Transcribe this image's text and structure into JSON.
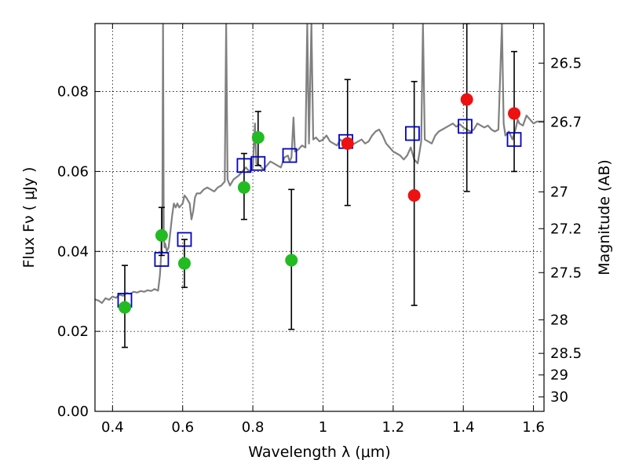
{
  "chart_data": {
    "type": "scatter",
    "xlabel": "Wavelength  λ (μm)",
    "ylabel": "Flux  Fν  ( μJy )",
    "y2label": "Magnitude (AB)",
    "xlim": [
      0.35,
      1.63
    ],
    "ylim": [
      0.0,
      0.097
    ],
    "grid": true,
    "x_ticks": [
      "0.4",
      "0.6",
      "0.8",
      "1",
      "1.2",
      "1.4",
      "1.6"
    ],
    "y_ticks": [
      "0.00",
      "0.02",
      "0.04",
      "0.06",
      "0.08"
    ],
    "y2_ticks": [
      {
        "label": "26.5",
        "flux": 0.0871
      },
      {
        "label": "26.7",
        "flux": 0.0724
      },
      {
        "label": "27",
        "flux": 0.0549
      },
      {
        "label": "27.2",
        "flux": 0.0457
      },
      {
        "label": "27.5",
        "flux": 0.0347
      },
      {
        "label": "28",
        "flux": 0.0229
      },
      {
        "label": "28.5",
        "flux": 0.0145
      },
      {
        "label": "29",
        "flux": 0.0091
      },
      {
        "label": "30",
        "flux": 0.0036
      }
    ],
    "series": [
      {
        "name": "model spectrum",
        "kind": "line",
        "color": "#808080",
        "points": [
          [
            0.35,
            0.028
          ],
          [
            0.36,
            0.0277
          ],
          [
            0.37,
            0.0271
          ],
          [
            0.38,
            0.0283
          ],
          [
            0.39,
            0.0279
          ],
          [
            0.4,
            0.0287
          ],
          [
            0.41,
            0.0284
          ],
          [
            0.42,
            0.0292
          ],
          [
            0.43,
            0.0289
          ],
          [
            0.44,
            0.0296
          ],
          [
            0.45,
            0.0294
          ],
          [
            0.46,
            0.0299
          ],
          [
            0.47,
            0.0297
          ],
          [
            0.48,
            0.0301
          ],
          [
            0.49,
            0.0299
          ],
          [
            0.5,
            0.0303
          ],
          [
            0.51,
            0.0301
          ],
          [
            0.52,
            0.0306
          ],
          [
            0.53,
            0.0302
          ],
          [
            0.535,
            0.034
          ],
          [
            0.538,
            0.038
          ],
          [
            0.54,
            0.044
          ],
          [
            0.542,
            0.048
          ],
          [
            0.544,
            0.097
          ],
          [
            0.546,
            0.045
          ],
          [
            0.548,
            0.041
          ],
          [
            0.55,
            0.042
          ],
          [
            0.555,
            0.04
          ],
          [
            0.56,
            0.041
          ],
          [
            0.565,
            0.045
          ],
          [
            0.57,
            0.049
          ],
          [
            0.575,
            0.052
          ],
          [
            0.58,
            0.051
          ],
          [
            0.585,
            0.052
          ],
          [
            0.59,
            0.051
          ],
          [
            0.6,
            0.052
          ],
          [
            0.605,
            0.054
          ],
          [
            0.61,
            0.0535
          ],
          [
            0.62,
            0.052
          ],
          [
            0.625,
            0.048
          ],
          [
            0.63,
            0.05
          ],
          [
            0.635,
            0.0535
          ],
          [
            0.64,
            0.0545
          ],
          [
            0.65,
            0.0545
          ],
          [
            0.66,
            0.0555
          ],
          [
            0.67,
            0.056
          ],
          [
            0.68,
            0.0555
          ],
          [
            0.69,
            0.055
          ],
          [
            0.7,
            0.056
          ],
          [
            0.71,
            0.0565
          ],
          [
            0.72,
            0.0575
          ],
          [
            0.724,
            0.097
          ],
          [
            0.728,
            0.058
          ],
          [
            0.735,
            0.0565
          ],
          [
            0.745,
            0.058
          ],
          [
            0.76,
            0.059
          ],
          [
            0.77,
            0.06
          ],
          [
            0.78,
            0.061
          ],
          [
            0.79,
            0.06
          ],
          [
            0.8,
            0.061
          ],
          [
            0.806,
            0.072
          ],
          [
            0.81,
            0.062
          ],
          [
            0.82,
            0.0615
          ],
          [
            0.83,
            0.0605
          ],
          [
            0.84,
            0.0615
          ],
          [
            0.85,
            0.0625
          ],
          [
            0.86,
            0.062
          ],
          [
            0.87,
            0.0615
          ],
          [
            0.88,
            0.061
          ],
          [
            0.89,
            0.0635
          ],
          [
            0.9,
            0.064
          ],
          [
            0.905,
            0.0625
          ],
          [
            0.91,
            0.0635
          ],
          [
            0.916,
            0.0735
          ],
          [
            0.92,
            0.065
          ],
          [
            0.93,
            0.0655
          ],
          [
            0.94,
            0.0665
          ],
          [
            0.95,
            0.066
          ],
          [
            0.955,
            0.097
          ],
          [
            0.96,
            0.067
          ],
          [
            0.967,
            0.097
          ],
          [
            0.972,
            0.068
          ],
          [
            0.98,
            0.0685
          ],
          [
            0.99,
            0.0675
          ],
          [
            1.0,
            0.068
          ],
          [
            1.01,
            0.069
          ],
          [
            1.02,
            0.0675
          ],
          [
            1.03,
            0.067
          ],
          [
            1.04,
            0.0665
          ],
          [
            1.05,
            0.068
          ],
          [
            1.06,
            0.067
          ],
          [
            1.07,
            0.0675
          ],
          [
            1.08,
            0.0665
          ],
          [
            1.09,
            0.067
          ],
          [
            1.1,
            0.0675
          ],
          [
            1.11,
            0.068
          ],
          [
            1.12,
            0.067
          ],
          [
            1.13,
            0.0675
          ],
          [
            1.14,
            0.069
          ],
          [
            1.15,
            0.07
          ],
          [
            1.16,
            0.0705
          ],
          [
            1.17,
            0.069
          ],
          [
            1.18,
            0.067
          ],
          [
            1.19,
            0.066
          ],
          [
            1.2,
            0.065
          ],
          [
            1.21,
            0.0645
          ],
          [
            1.22,
            0.064
          ],
          [
            1.23,
            0.063
          ],
          [
            1.24,
            0.064
          ],
          [
            1.25,
            0.066
          ],
          [
            1.26,
            0.063
          ],
          [
            1.27,
            0.062
          ],
          [
            1.28,
            0.0675
          ],
          [
            1.285,
            0.097
          ],
          [
            1.29,
            0.068
          ],
          [
            1.3,
            0.0675
          ],
          [
            1.31,
            0.067
          ],
          [
            1.32,
            0.069
          ],
          [
            1.33,
            0.07
          ],
          [
            1.34,
            0.0705
          ],
          [
            1.35,
            0.071
          ],
          [
            1.36,
            0.0715
          ],
          [
            1.37,
            0.072
          ],
          [
            1.38,
            0.0712
          ],
          [
            1.39,
            0.0718
          ],
          [
            1.4,
            0.071
          ],
          [
            1.41,
            0.0705
          ],
          [
            1.42,
            0.07
          ],
          [
            1.43,
            0.0705
          ],
          [
            1.44,
            0.072
          ],
          [
            1.45,
            0.0715
          ],
          [
            1.46,
            0.071
          ],
          [
            1.47,
            0.0715
          ],
          [
            1.48,
            0.0705
          ],
          [
            1.49,
            0.07
          ],
          [
            1.5,
            0.0705
          ],
          [
            1.51,
            0.097
          ],
          [
            1.515,
            0.072
          ],
          [
            1.52,
            0.069
          ],
          [
            1.53,
            0.07
          ],
          [
            1.54,
            0.068
          ],
          [
            1.55,
            0.071
          ],
          [
            1.555,
            0.073
          ],
          [
            1.56,
            0.072
          ],
          [
            1.57,
            0.0715
          ],
          [
            1.58,
            0.074
          ],
          [
            1.59,
            0.073
          ],
          [
            1.6,
            0.072
          ],
          [
            1.61,
            0.0725
          ],
          [
            1.63,
            0.0725
          ]
        ]
      },
      {
        "name": "model photometry",
        "kind": "open-square",
        "color": "#0000cc",
        "x": [
          0.435,
          0.54,
          0.605,
          0.775,
          0.815,
          0.905,
          1.065,
          1.255,
          1.405,
          1.545
        ],
        "y": [
          0.0278,
          0.038,
          0.043,
          0.0615,
          0.062,
          0.064,
          0.0675,
          0.0695,
          0.0713,
          0.068
        ]
      },
      {
        "name": "observed flux (green)",
        "kind": "filled-circle",
        "color": "#22bb22",
        "x": [
          0.435,
          0.54,
          0.605,
          0.775,
          0.815,
          0.91
        ],
        "y": [
          0.026,
          0.044,
          0.037,
          0.056,
          0.0685,
          0.0378
        ],
        "yerr_low": [
          0.016,
          0.039,
          0.031,
          0.048,
          0.0615,
          0.0205
        ],
        "yerr_high": [
          0.0365,
          0.051,
          0.043,
          0.0645,
          0.075,
          0.0555
        ]
      },
      {
        "name": "observed flux (red)",
        "kind": "filled-circle",
        "color": "#ee1111",
        "x": [
          1.07,
          1.26,
          1.41,
          1.545
        ],
        "y": [
          0.067,
          0.054,
          0.078,
          0.0745
        ],
        "yerr_low": [
          0.0515,
          0.0265,
          0.055,
          0.06
        ],
        "yerr_high": [
          0.083,
          0.0825,
          0.097,
          0.09
        ]
      }
    ]
  }
}
